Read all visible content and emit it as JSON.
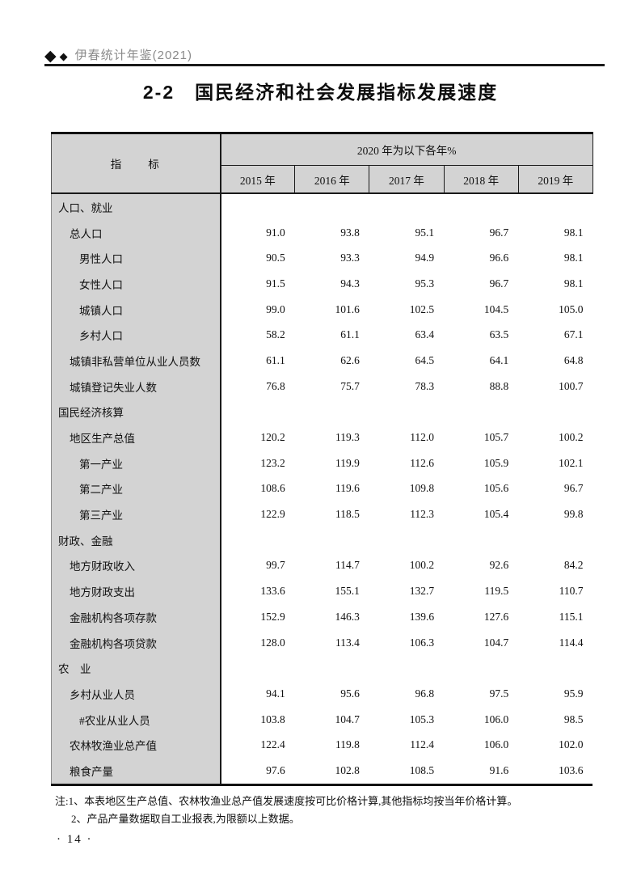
{
  "header": {
    "diamond_big": "◆",
    "diamond_small": "◆",
    "book_title": "伊春统计年鉴(2021)"
  },
  "title": "2-2　国民经济和社会发展指标发展速度",
  "table": {
    "indicator_header": "指　　标",
    "group_header": "2020 年为以下各年%",
    "year_headers": [
      "2015 年",
      "2016 年",
      "2017 年",
      "2018 年",
      "2019 年"
    ],
    "rows": [
      {
        "label": "人口、就业",
        "indent": 0,
        "values": [
          "",
          "",
          "",
          "",
          ""
        ]
      },
      {
        "label": "总人口",
        "indent": 1,
        "values": [
          "91.0",
          "93.8",
          "95.1",
          "96.7",
          "98.1"
        ]
      },
      {
        "label": "男性人口",
        "indent": 2,
        "values": [
          "90.5",
          "93.3",
          "94.9",
          "96.6",
          "98.1"
        ]
      },
      {
        "label": "女性人口",
        "indent": 2,
        "values": [
          "91.5",
          "94.3",
          "95.3",
          "96.7",
          "98.1"
        ]
      },
      {
        "label": "城镇人口",
        "indent": 2,
        "values": [
          "99.0",
          "101.6",
          "102.5",
          "104.5",
          "105.0"
        ]
      },
      {
        "label": "乡村人口",
        "indent": 2,
        "values": [
          "58.2",
          "61.1",
          "63.4",
          "63.5",
          "67.1"
        ]
      },
      {
        "label": "城镇非私营单位从业人员数",
        "indent": 1,
        "values": [
          "61.1",
          "62.6",
          "64.5",
          "64.1",
          "64.8"
        ]
      },
      {
        "label": "城镇登记失业人数",
        "indent": 1,
        "values": [
          "76.8",
          "75.7",
          "78.3",
          "88.8",
          "100.7"
        ]
      },
      {
        "label": "国民经济核算",
        "indent": 0,
        "values": [
          "",
          "",
          "",
          "",
          ""
        ]
      },
      {
        "label": "地区生产总值",
        "indent": 1,
        "values": [
          "120.2",
          "119.3",
          "112.0",
          "105.7",
          "100.2"
        ]
      },
      {
        "label": "第一产业",
        "indent": 2,
        "values": [
          "123.2",
          "119.9",
          "112.6",
          "105.9",
          "102.1"
        ]
      },
      {
        "label": "第二产业",
        "indent": 2,
        "values": [
          "108.6",
          "119.6",
          "109.8",
          "105.6",
          "96.7"
        ]
      },
      {
        "label": "第三产业",
        "indent": 2,
        "values": [
          "122.9",
          "118.5",
          "112.3",
          "105.4",
          "99.8"
        ]
      },
      {
        "label": "财政、金融",
        "indent": 0,
        "values": [
          "",
          "",
          "",
          "",
          ""
        ]
      },
      {
        "label": "地方财政收入",
        "indent": 1,
        "values": [
          "99.7",
          "114.7",
          "100.2",
          "92.6",
          "84.2"
        ]
      },
      {
        "label": "地方财政支出",
        "indent": 1,
        "values": [
          "133.6",
          "155.1",
          "132.7",
          "119.5",
          "110.7"
        ]
      },
      {
        "label": "金融机构各项存款",
        "indent": 1,
        "values": [
          "152.9",
          "146.3",
          "139.6",
          "127.6",
          "115.1"
        ]
      },
      {
        "label": "金融机构各项贷款",
        "indent": 1,
        "values": [
          "128.0",
          "113.4",
          "106.3",
          "104.7",
          "114.4"
        ]
      },
      {
        "label": "农　业",
        "indent": 0,
        "values": [
          "",
          "",
          "",
          "",
          ""
        ]
      },
      {
        "label": "乡村从业人员",
        "indent": 1,
        "values": [
          "94.1",
          "95.6",
          "96.8",
          "97.5",
          "95.9"
        ]
      },
      {
        "label": "#农业从业人员",
        "indent": 2,
        "values": [
          "103.8",
          "104.7",
          "105.3",
          "106.0",
          "98.5"
        ]
      },
      {
        "label": "农林牧渔业总产值",
        "indent": 1,
        "values": [
          "122.4",
          "119.8",
          "112.4",
          "106.0",
          "102.0"
        ]
      },
      {
        "label": "粮食产量",
        "indent": 1,
        "values": [
          "97.6",
          "102.8",
          "108.5",
          "91.6",
          "103.6"
        ]
      }
    ]
  },
  "notes": {
    "line1": "注:1、本表地区生产总值、农林牧渔业总产值发展速度按可比价格计算,其他指标均按当年价格计算。",
    "line2": "2、产品产量数据取自工业报表,为限额以上数据。"
  },
  "page_number": "· 14 ·"
}
